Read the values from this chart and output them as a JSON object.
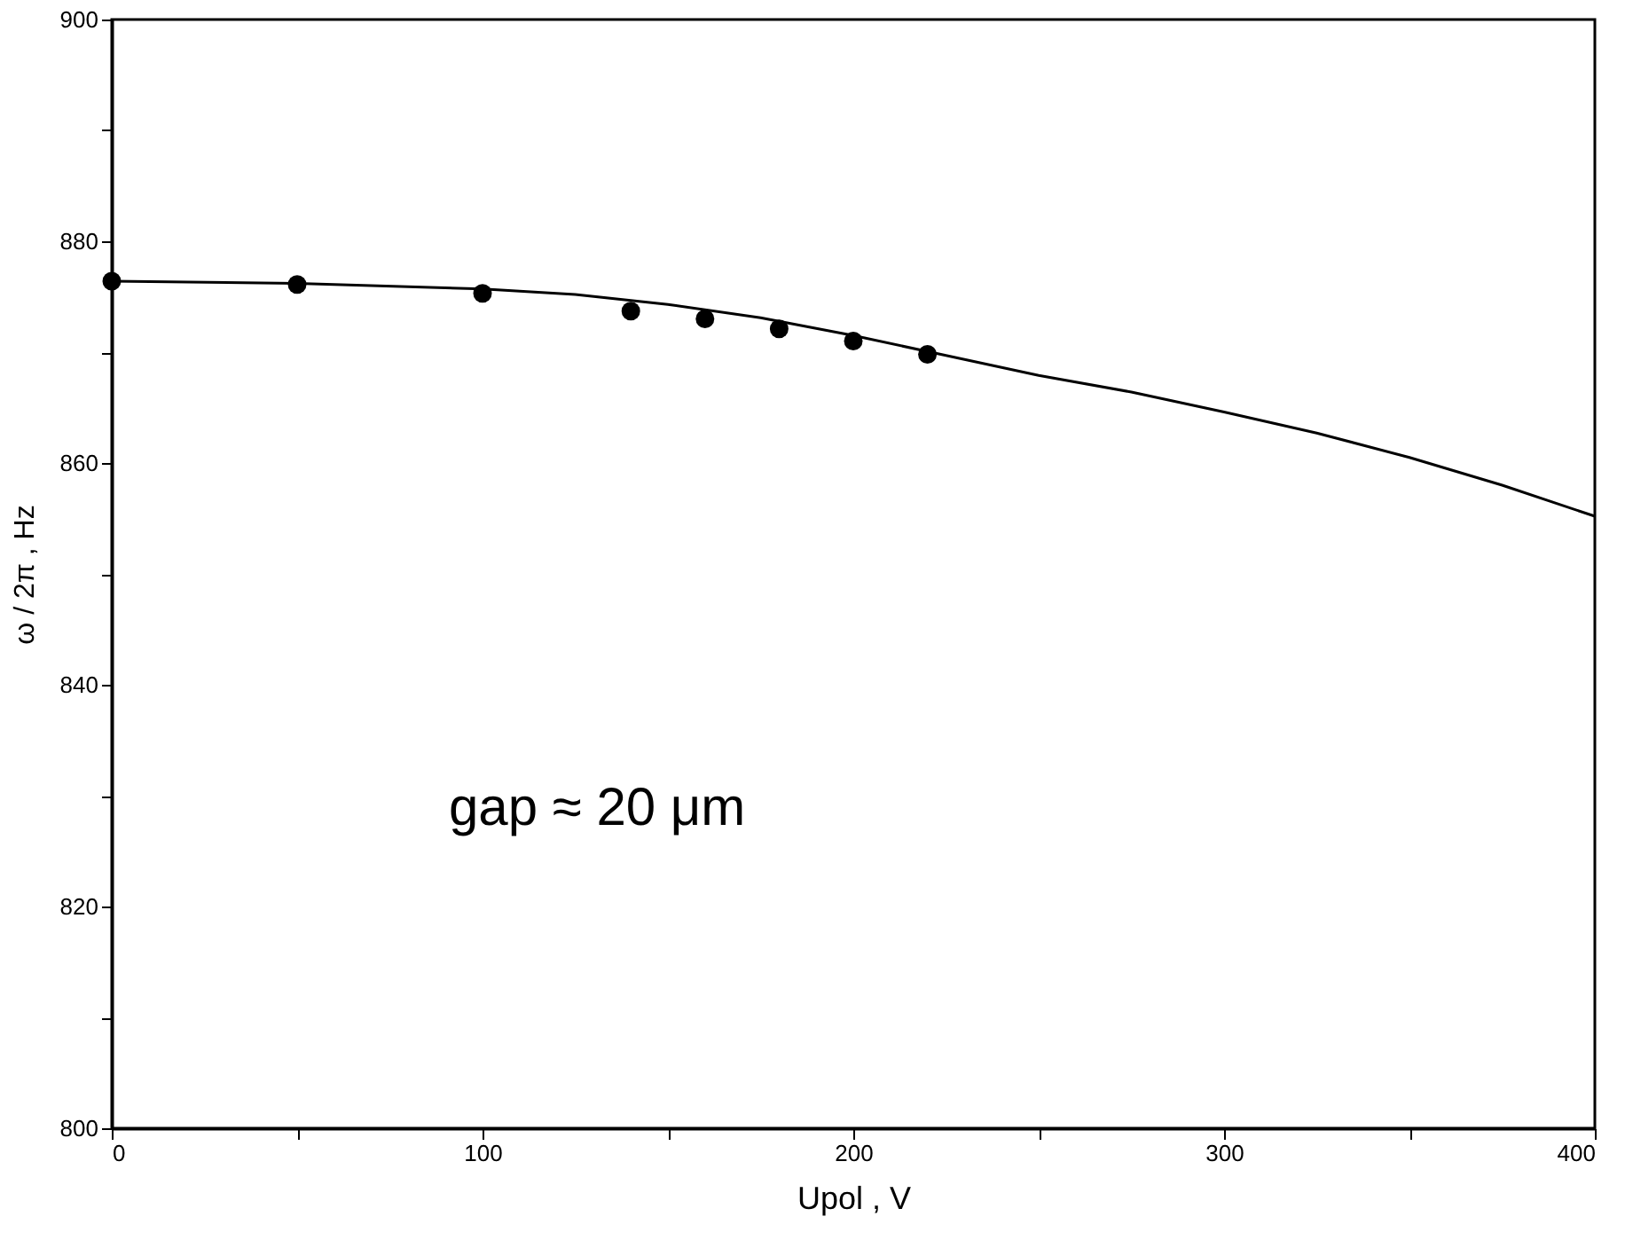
{
  "chart_data": {
    "type": "scatter",
    "xlabel": "Upol , V",
    "ylabel": "ω / 2π , Hz",
    "annotations": [
      "gap ≈ 20 μm"
    ],
    "xlim": [
      0,
      400
    ],
    "ylim": [
      800,
      900
    ],
    "xticks": [
      0,
      {
        "value": 50,
        "label": null
      },
      100,
      {
        "value": 150,
        "label": null
      },
      200,
      {
        "value": 250,
        "label": null
      },
      300,
      {
        "value": 350,
        "label": null
      },
      400
    ],
    "yticks": [
      800,
      {
        "value": 810,
        "label": null
      },
      820,
      {
        "value": 830,
        "label": null
      },
      840,
      {
        "value": 850,
        "label": null
      },
      860,
      {
        "value": 870,
        "label": null
      },
      880,
      {
        "value": 890,
        "label": null
      },
      900
    ],
    "grid": false,
    "series": [
      {
        "color": "#000000",
        "marker": "circle",
        "x": [
          0,
          50,
          100,
          140,
          160,
          180,
          200,
          220
        ],
        "values": [
          876.4,
          876.1,
          875.3,
          873.7,
          873.0,
          872.1,
          871.0,
          869.8
        ]
      },
      {
        "type": "line",
        "color": "#000000",
        "marker": "none",
        "line_style": "solid",
        "x": [
          0,
          50,
          100,
          125,
          150,
          175,
          200,
          225,
          250,
          275,
          300,
          325,
          350,
          375,
          400
        ],
        "values": [
          876.4,
          876.2,
          875.7,
          875.2,
          874.3,
          873.1,
          871.5,
          869.7,
          867.9,
          866.4,
          864.6,
          862.7,
          860.5,
          858.0,
          855.2
        ]
      }
    ]
  }
}
